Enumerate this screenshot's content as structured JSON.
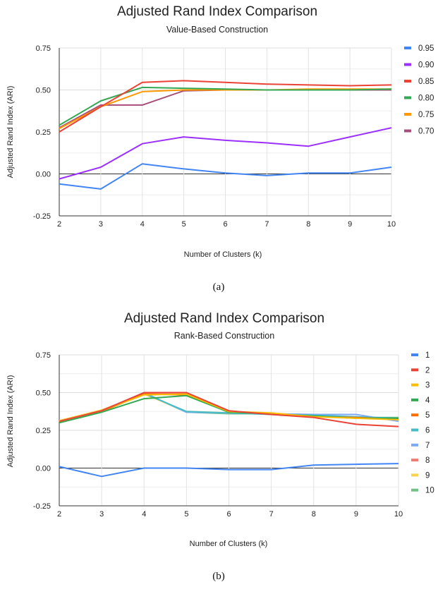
{
  "chart_data": [
    {
      "type": "line",
      "title": "Adjusted Rand Index Comparison",
      "subtitle": "Value-Based Construction",
      "xlabel": "Number of Clusters (k)",
      "ylabel": "Adjusted Rand Index (ARI)",
      "x": [
        2,
        3,
        4,
        5,
        6,
        7,
        8,
        9,
        10
      ],
      "xticks": [
        "2",
        "3",
        "4",
        "5",
        "6",
        "7",
        "8",
        "9",
        "10"
      ],
      "xlim": [
        2,
        10
      ],
      "ylim": [
        -0.25,
        0.75
      ],
      "yticks": [
        -0.25,
        0,
        0.25,
        0.5,
        0.75
      ],
      "ytick_labels": [
        "-0.25",
        "0.00",
        "0.25",
        "0.50",
        "0.75"
      ],
      "grid": true,
      "legend_position": "right",
      "caption": "(a)",
      "series": [
        {
          "name": "0.95",
          "color": "#4285f4",
          "values": [
            -0.06,
            -0.09,
            0.06,
            0.03,
            0.005,
            -0.01,
            0.005,
            0.005,
            0.04
          ]
        },
        {
          "name": "0.90",
          "color": "#9b30ff",
          "values": [
            -0.03,
            0.04,
            0.18,
            0.22,
            0.2,
            0.185,
            0.165,
            0.22,
            0.275
          ]
        },
        {
          "name": "0.85",
          "color": "#ea4335",
          "values": [
            0.25,
            0.4,
            0.545,
            0.555,
            0.545,
            0.535,
            0.53,
            0.525,
            0.53
          ]
        },
        {
          "name": "0.80",
          "color": "#34a853",
          "values": [
            0.29,
            0.435,
            0.515,
            0.51,
            0.505,
            0.5,
            0.5,
            0.5,
            0.505
          ]
        },
        {
          "name": "0.75",
          "color": "#ff9900",
          "values": [
            0.27,
            0.4,
            0.49,
            0.5,
            0.5,
            0.5,
            0.505,
            0.505,
            0.505
          ]
        },
        {
          "name": "0.70",
          "color": "#a64d79",
          "values": [
            0.275,
            0.41,
            0.41,
            0.495,
            0.5,
            0.5,
            0.5,
            0.5,
            0.5
          ]
        }
      ]
    },
    {
      "type": "line",
      "title": "Adjusted Rand Index Comparison",
      "subtitle": "Rank-Based Construction",
      "xlabel": "Number of Clusters (k)",
      "ylabel": "Adjusted Rand Index (ARI)",
      "x": [
        2,
        3,
        4,
        5,
        6,
        7,
        8,
        9,
        10
      ],
      "xticks": [
        "2",
        "3",
        "4",
        "5",
        "6",
        "7",
        "8",
        "9",
        "10"
      ],
      "xlim": [
        2,
        10
      ],
      "ylim": [
        -0.25,
        0.75
      ],
      "yticks": [
        -0.25,
        0,
        0.25,
        0.5,
        0.75
      ],
      "ytick_labels": [
        "-0.25",
        "0.00",
        "0.25",
        "0.50",
        "0.75"
      ],
      "grid": true,
      "legend_position": "right",
      "caption": "(b)",
      "series": [
        {
          "name": "1",
          "color": "#4285f4",
          "values": [
            0.01,
            -0.055,
            0,
            0,
            -0.01,
            -0.01,
            0.02,
            0.025,
            0.03
          ]
        },
        {
          "name": "2",
          "color": "#ea4335",
          "values": [
            0.31,
            0.38,
            0.5,
            0.5,
            0.38,
            0.355,
            0.335,
            0.29,
            0.275
          ]
        },
        {
          "name": "3",
          "color": "#fbbc04",
          "values": [
            0.31,
            0.38,
            0.485,
            0.49,
            0.375,
            0.365,
            0.34,
            0.33,
            0.32
          ]
        },
        {
          "name": "4",
          "color": "#34a853",
          "values": [
            0.3,
            0.37,
            0.46,
            0.48,
            0.37,
            0.36,
            0.345,
            0.33,
            0.33
          ]
        },
        {
          "name": "5",
          "color": "#ff6d01",
          "values": [
            0.305,
            0.375,
            0.49,
            0.485,
            0.37,
            0.36,
            0.34,
            0.335,
            0.325
          ]
        },
        {
          "name": "6",
          "color": "#46bdc6",
          "values": [
            0.305,
            0.375,
            0.495,
            0.375,
            0.365,
            0.355,
            0.35,
            0.34,
            0.33
          ]
        },
        {
          "name": "7",
          "color": "#7baaf7",
          "values": [
            0.31,
            0.38,
            0.5,
            0.37,
            0.365,
            0.36,
            0.355,
            0.355,
            0.31
          ]
        },
        {
          "name": "8",
          "color": "#f07b72",
          "values": [
            0.305,
            0.375,
            0.49,
            0.49,
            0.37,
            0.355,
            0.34,
            0.335,
            0.33
          ]
        },
        {
          "name": "9",
          "color": "#fcd04f",
          "values": [
            0.315,
            0.385,
            0.49,
            0.375,
            0.365,
            0.365,
            0.345,
            0.335,
            0.325
          ]
        },
        {
          "name": "10",
          "color": "#71c287",
          "values": [
            0.305,
            0.375,
            0.495,
            0.37,
            0.36,
            0.36,
            0.345,
            0.335,
            0.335
          ]
        }
      ]
    }
  ]
}
